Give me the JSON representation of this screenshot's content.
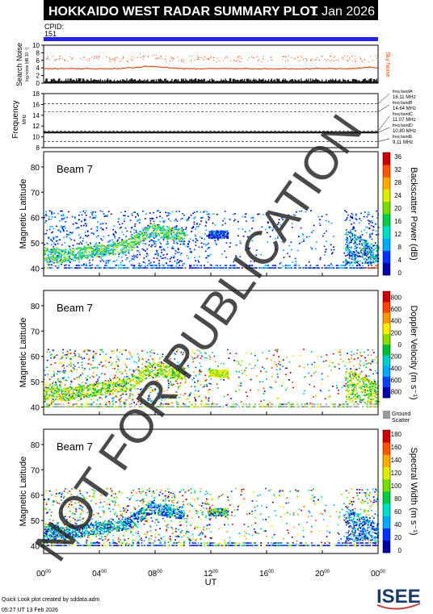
{
  "header": {
    "title": "HOKKAIDO WEST RADAR SUMMARY PLOT",
    "date": "1 Jan 2026",
    "cpid_label": "CPID:",
    "cpid_value": "151"
  },
  "colors": {
    "header_bg": "#000000",
    "cpid_bar": "#2222ee",
    "noise": "#e05010",
    "frame": "#000000"
  },
  "chart_data": [
    {
      "type": "line",
      "name": "search-noise-panel",
      "ylabel": "Search Noise",
      "ylabel_sub": "log-noise [dB 10⁻¹]",
      "side_label": "Sky Noise",
      "yticks": [
        "0",
        "2",
        "4",
        "6",
        "8",
        "10"
      ],
      "ylim": [
        0,
        10
      ],
      "baseline_level": 3.8,
      "scatter_level": 6.5
    },
    {
      "type": "line",
      "name": "frequency-panel",
      "ylabel": "Frequency",
      "ylabel_sub": "MHz",
      "yticks": [
        "8",
        "10",
        "12",
        "14",
        "16",
        "18"
      ],
      "ylim": [
        8,
        18
      ],
      "bands": [
        {
          "label": "freq bandA",
          "value": "16.11 MHz",
          "mhz": 16.11
        },
        {
          "label": "freq bandB",
          "value": "14.64 MHz",
          "mhz": 14.64
        },
        {
          "label": "freq bandC",
          "value": "11.07 MHz",
          "mhz": 11.07
        },
        {
          "label": "freq bandD",
          "value": "10.80 MHz",
          "mhz": 10.8
        },
        {
          "label": "freq bandE",
          "value": "9.11 MHz",
          "mhz": 9.11
        }
      ],
      "main_frequency": 10.8
    },
    {
      "type": "heatmap",
      "name": "backscatter-power-panel",
      "beam": "Beam  7",
      "ylabel": "Magnetic Latitude",
      "yticks": [
        "40",
        "50",
        "60",
        "70",
        "80"
      ],
      "ylim": [
        37,
        86
      ],
      "colorbar_label": "Backscatter Power (dB)",
      "colorbar_ticks": [
        "0",
        "4",
        "8",
        "12",
        "16",
        "20",
        "24",
        "28",
        "32",
        "36"
      ],
      "colorbar_colors": [
        "#0000aa",
        "#0033ff",
        "#00aaff",
        "#00ddcc",
        "#00cc44",
        "#77dd00",
        "#ddee00",
        "#ffaa00",
        "#ff5500",
        "#cc0000"
      ]
    },
    {
      "type": "heatmap",
      "name": "doppler-velocity-panel",
      "beam": "Beam  7",
      "ylabel": "Magnetic Latitude",
      "yticks": [
        "40",
        "50",
        "60",
        "70",
        "80"
      ],
      "ylim": [
        37,
        86
      ],
      "colorbar_label": "Doppler Velocity (m s⁻¹)",
      "colorbar_ticks": [
        "800",
        "600",
        "400",
        "200",
        "0",
        "-200",
        "-400",
        "-600",
        "-800"
      ],
      "colorbar_colors": [
        "#0000aa",
        "#0044ff",
        "#00aaff",
        "#00cccc",
        "#00bb33",
        "#88dd00",
        "#ffee00",
        "#ff9900",
        "#ff4400",
        "#cc0000"
      ],
      "ground_scatter_label": "Ground Scatter"
    },
    {
      "type": "heatmap",
      "name": "spectral-width-panel",
      "beam": "Beam  7",
      "ylabel": "Magnetic Latitude",
      "yticks": [
        "40",
        "50",
        "60",
        "70",
        "80"
      ],
      "ylim": [
        37,
        86
      ],
      "colorbar_label": "Spectral Width (m s⁻¹)",
      "colorbar_ticks": [
        "0",
        "20",
        "40",
        "60",
        "80",
        "100",
        "120",
        "140",
        "160",
        "180"
      ],
      "colorbar_colors": [
        "#0000aa",
        "#0033ff",
        "#00aaff",
        "#00ddcc",
        "#00cc44",
        "#77dd00",
        "#ddee00",
        "#ffaa00",
        "#ff5500",
        "#cc0000"
      ]
    }
  ],
  "xaxis": {
    "label": "UT",
    "ticks": [
      {
        "h": "00",
        "m": "00"
      },
      {
        "h": "04",
        "m": "00"
      },
      {
        "h": "08",
        "m": "00"
      },
      {
        "h": "12",
        "m": "00"
      },
      {
        "h": "16",
        "m": "00"
      },
      {
        "h": "20",
        "m": "00"
      },
      {
        "h": "00",
        "m": "00"
      }
    ]
  },
  "watermark": "NOT FOR PUBLICATION",
  "footer": {
    "credit": "Quick Look plot created by sddata.adm",
    "timestamp": "05:27 UT 13 Feb 2026",
    "logo": "ISEE"
  }
}
